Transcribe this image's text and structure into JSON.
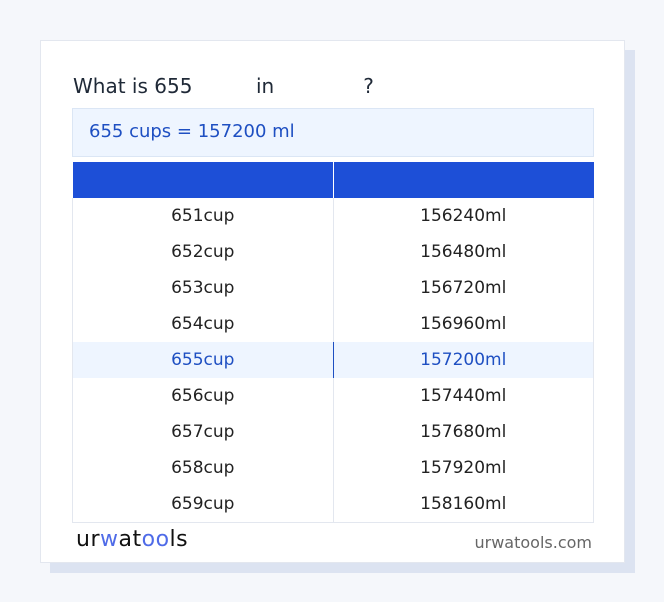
{
  "title": {
    "prefix": "What is 655",
    "mid": "in",
    "suffix": "?"
  },
  "result": "655 cups = 157200 ml",
  "table": {
    "headers": [
      "",
      ""
    ],
    "rows": [
      [
        "651cup",
        "156240ml"
      ],
      [
        "652cup",
        "156480ml"
      ],
      [
        "653cup",
        "156720ml"
      ],
      [
        "654cup",
        "156960ml"
      ],
      [
        "655cup",
        "157200ml"
      ],
      [
        "656cup",
        "157440ml"
      ],
      [
        "657cup",
        "157680ml"
      ],
      [
        "658cup",
        "157920ml"
      ],
      [
        "659cup",
        "158160ml"
      ]
    ],
    "highlighted_row": 4
  },
  "footer": {
    "logo": "urwatools",
    "site": "urwatools.com"
  },
  "colors": {
    "accent": "#1d4fd7",
    "highlight_bg": "#eef5ff"
  }
}
